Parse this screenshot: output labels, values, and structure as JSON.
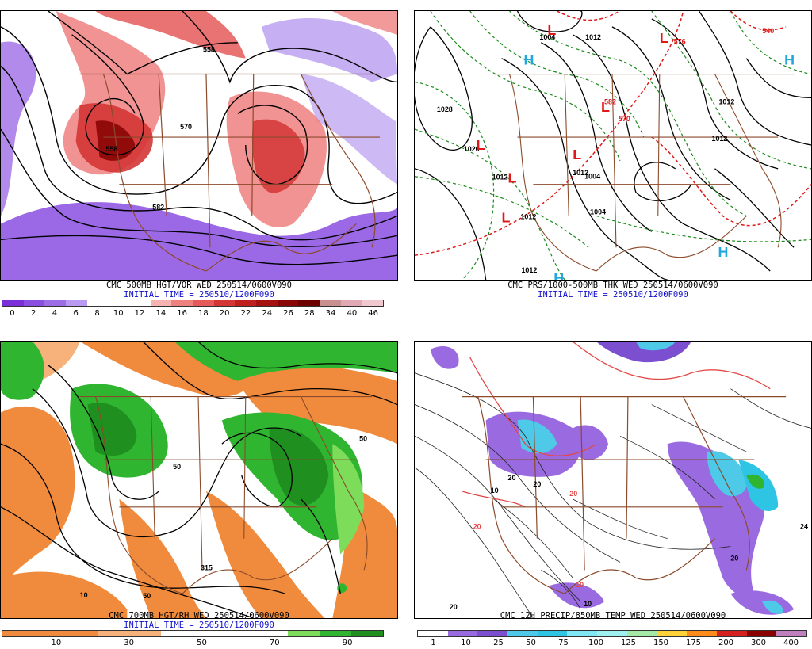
{
  "panels": [
    {
      "id": "vort",
      "caption": "CMC 500MB HGT/VOR WED 250514/0600V090",
      "init": "INITIAL TIME = 250510/1200F090",
      "legend_values": [
        "0",
        "2",
        "4",
        "6",
        "8",
        "10",
        "12",
        "14",
        "16",
        "18",
        "20",
        "22",
        "24",
        "26",
        "28",
        "34",
        "40",
        "46"
      ],
      "legend_colors": [
        "#7b2fd9",
        "#8a4fe0",
        "#9d6de6",
        "#b89bf0",
        "#ffffff",
        "#ffffff",
        "#ffffff",
        "#f7b2b2",
        "#ef8080",
        "#e55a5a",
        "#d43535",
        "#bf1f1f",
        "#a51010",
        "#8a0505",
        "#6e0000",
        "#c99090",
        "#e0a9b4",
        "#f2c8d0"
      ],
      "contour_labels": [
        "558",
        "570",
        "558",
        "582"
      ]
    },
    {
      "id": "thk",
      "caption": "CMC PRS/1000-500MB THK WED 250514/0600V090",
      "init": "INITIAL TIME = 250510/1200F090",
      "isobar_labels": [
        "1004",
        "1012",
        "1028",
        "1020",
        "1012",
        "1012",
        "1004",
        "1012",
        "1012",
        "1012",
        "1012",
        "1004"
      ],
      "thickness_labels": [
        "540",
        "576",
        "582",
        "570"
      ],
      "highs": [
        "H",
        "H",
        "H",
        "H"
      ],
      "lows": [
        "L",
        "L",
        "L",
        "L",
        "L",
        "L",
        "L"
      ]
    },
    {
      "id": "rh",
      "caption": "CMC 700MB HGT/RH WED 250514/0600V090",
      "init": "INITIAL TIME = 250510/1200F090",
      "legend_values": [
        "10",
        "30",
        "50",
        "70",
        "90"
      ],
      "legend_colors": [
        "#f08a3c",
        "#f08a3c",
        "#f08a3c",
        "#f6b27a",
        "#f6b27a",
        "#ffffff",
        "#ffffff",
        "#ffffff",
        "#ffffff",
        "#7ddc5a",
        "#2fb52f",
        "#1f8f1f"
      ],
      "contour_labels": [
        "315",
        "50",
        "10",
        "50",
        "50"
      ]
    },
    {
      "id": "precip",
      "caption": "CMC 12H PRECIP/850MB TEMP WED 250514/0600V090",
      "legend_values": [
        "1",
        "10",
        "25",
        "50",
        "75",
        "100",
        "125",
        "150",
        "175",
        "200",
        "300",
        "400"
      ],
      "legend_colors": [
        "#ffffff",
        "#9a6ae0",
        "#7b4fd0",
        "#4fc9e8",
        "#2ec4e4",
        "#7fe8f4",
        "#9ff0f0",
        "#a6e8a6",
        "#ffd23a",
        "#ff8c1a",
        "#d62020",
        "#8a0000",
        "#c080c0"
      ],
      "temp_labels": [
        "20",
        "20",
        "10",
        "10",
        "20",
        "20",
        "10",
        "20",
        "24",
        "20"
      ]
    }
  ]
}
